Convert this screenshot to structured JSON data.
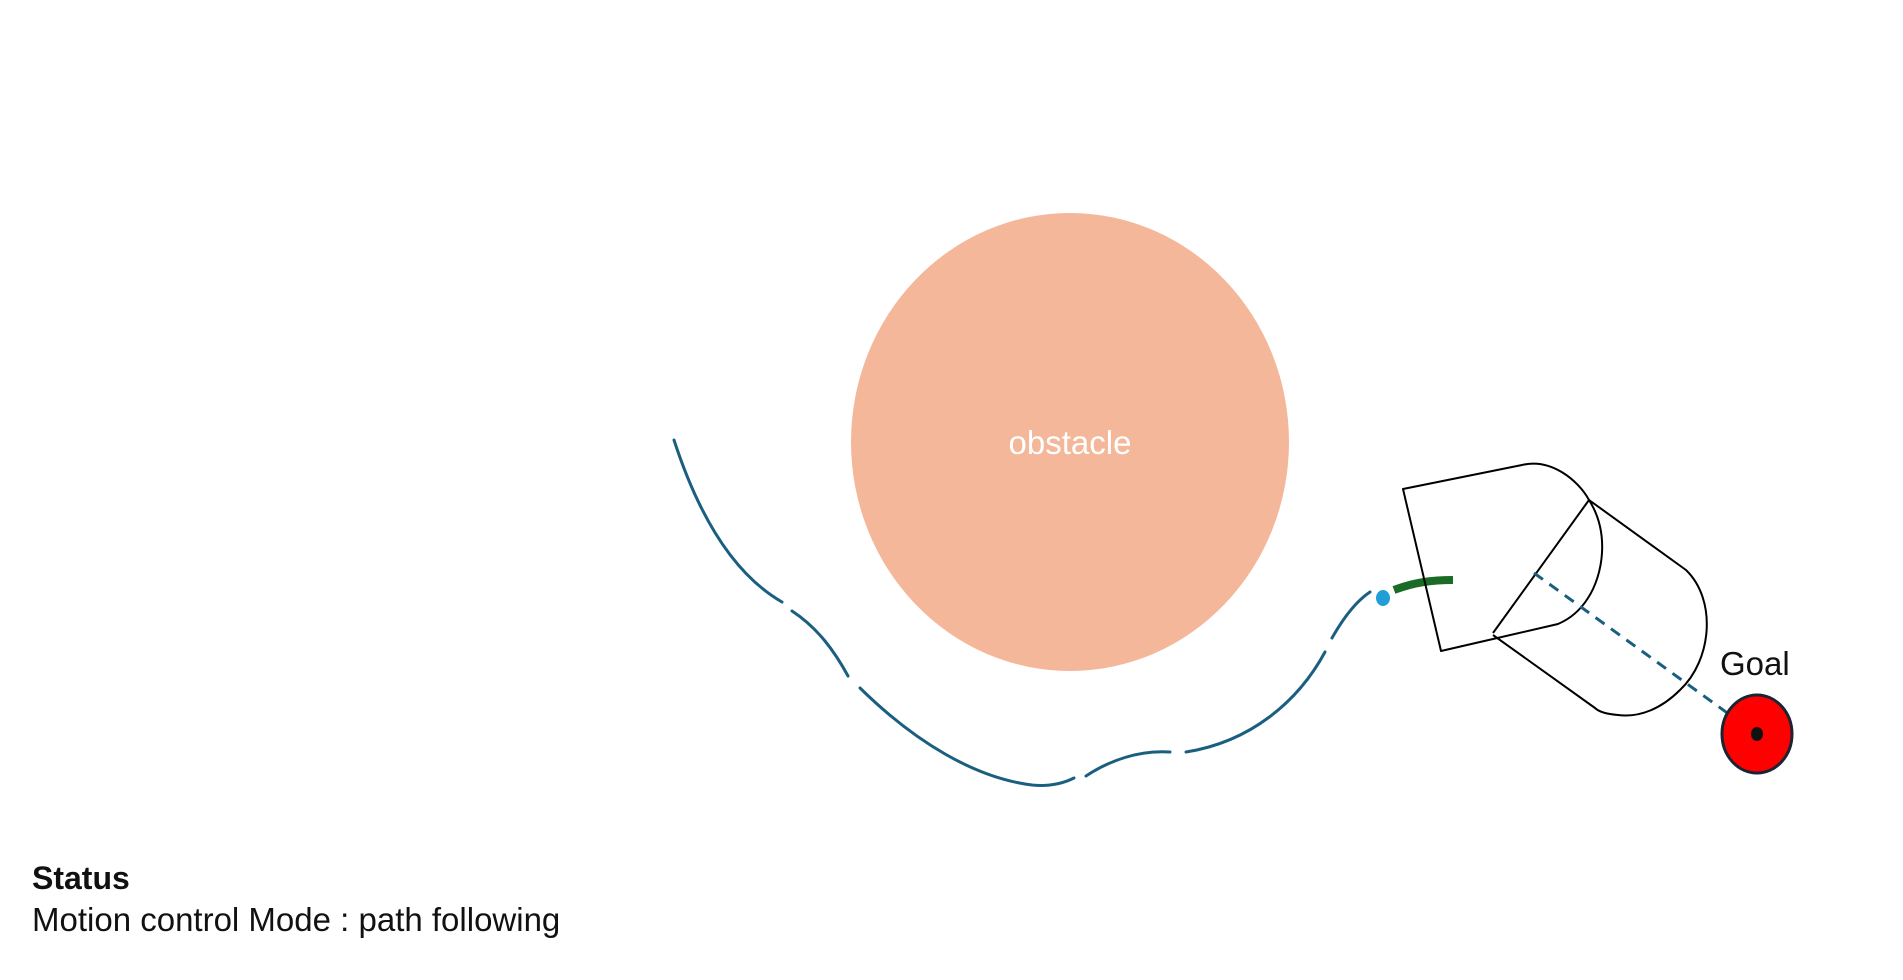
{
  "scene": {
    "obstacle_label": "obstacle",
    "goal_label": "Goal"
  },
  "status": {
    "title": "Status",
    "mode_text": "Motion control Mode : path following"
  },
  "colors": {
    "obstacle": "#f4b79a",
    "path": "#1b5f80",
    "active_segment": "#1a6b25",
    "waypoint": "#1f9fd6",
    "goal": "#ff0000",
    "robot_outline": "#000000"
  },
  "icons": {
    "robot": "robot-outline-icon",
    "goal": "goal-target-icon",
    "waypoint": "waypoint-dot-icon"
  }
}
